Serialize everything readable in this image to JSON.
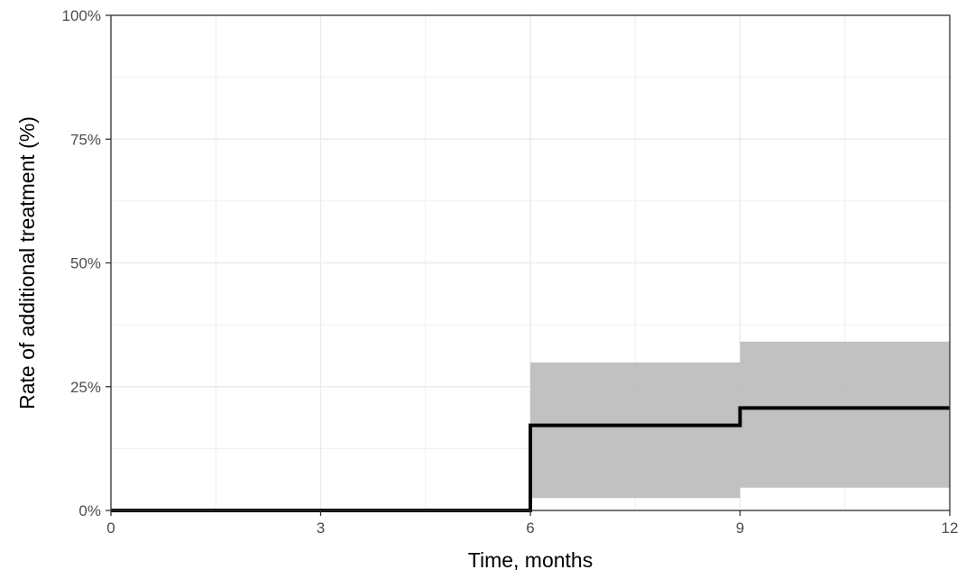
{
  "chart_data": {
    "type": "line",
    "step": true,
    "title": "",
    "xlabel": "Time, months",
    "ylabel": "Rate of additional treatment (%)",
    "xlim": [
      0,
      12
    ],
    "ylim": [
      0,
      100
    ],
    "x_ticks": [
      0,
      3,
      6,
      9,
      12
    ],
    "x_tick_labels": [
      "0",
      "3",
      "6",
      "9",
      "12"
    ],
    "y_ticks": [
      0,
      25,
      50,
      75,
      100
    ],
    "y_tick_labels": [
      "0%",
      "25%",
      "50%",
      "75%",
      "100%"
    ],
    "grid": true,
    "legend": "none",
    "series": [
      {
        "x": [
          0,
          6,
          9,
          12
        ],
        "y": [
          0,
          17.2,
          20.7,
          20.7
        ],
        "color": "#000000"
      }
    ],
    "confidence_band": [
      {
        "x_start": 6,
        "x_end": 9,
        "lower": 2.5,
        "upper": 29.9
      },
      {
        "x_start": 9,
        "x_end": 12,
        "lower": 4.6,
        "upper": 34.1
      }
    ],
    "band_color": "#bebebe",
    "panel_border_color": "#333333",
    "grid_color": "#ebebeb"
  }
}
